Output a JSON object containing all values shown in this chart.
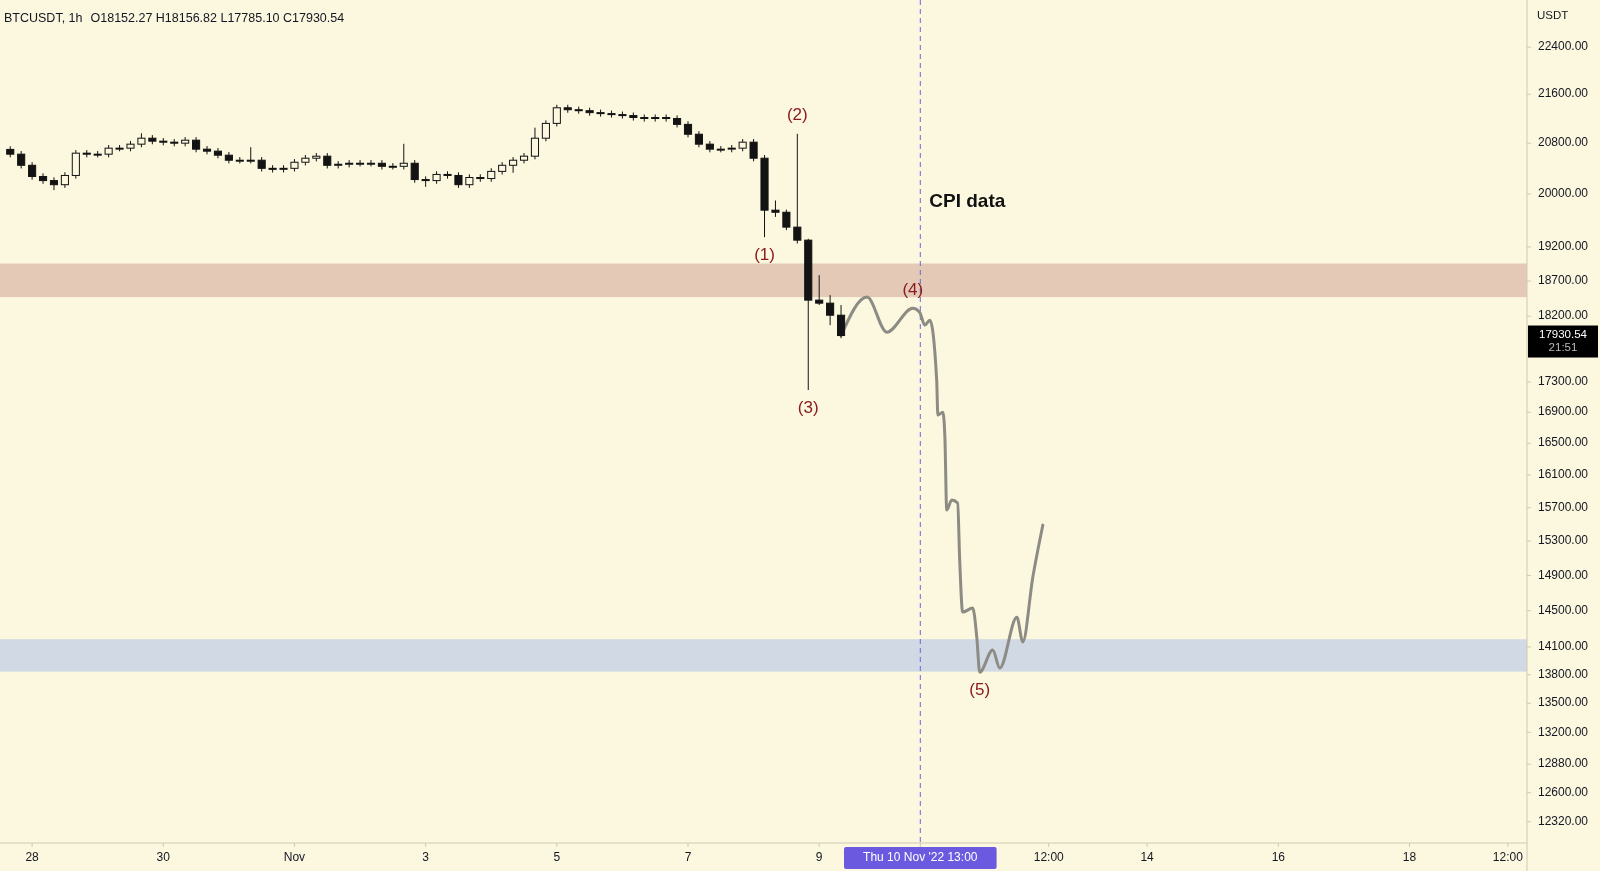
{
  "chart_data": {
    "type": "candlestick",
    "title": "BTCUSDT, 1h",
    "subtitle": "O18152.27 H18156.82 L17785.10 C17930.54",
    "ylabel": "USDT",
    "log": true,
    "grid": false,
    "xlim": [
      "2022-10-27T12:15",
      "2022-11-19T19:00"
    ],
    "ylim": [
      12120,
      23230
    ],
    "xticks": [
      {
        "value": "2022-10-28",
        "label": "28"
      },
      {
        "value": "2022-10-30",
        "label": "30"
      },
      {
        "value": "2022-11-01",
        "label": "Nov"
      },
      {
        "value": "2022-11-03",
        "label": "3"
      },
      {
        "value": "2022-11-05",
        "label": "5"
      },
      {
        "value": "2022-11-07",
        "label": "7"
      },
      {
        "value": "2022-11-09",
        "label": "9"
      },
      {
        "value": "2022-11-10T13:00",
        "label": "Thu 10 Nov '22  13:00"
      },
      {
        "value": "2022-11-12T12:00",
        "label": "12:00"
      },
      {
        "value": "2022-11-14",
        "label": "14"
      },
      {
        "value": "2022-11-16",
        "label": "16"
      },
      {
        "value": "2022-11-18",
        "label": "18"
      },
      {
        "value": "2022-11-19T12:00",
        "label": "12:00"
      }
    ],
    "yticks": [
      {
        "value": 22400,
        "label": "22400.00"
      },
      {
        "value": 21600,
        "label": "21600.00"
      },
      {
        "value": 20800,
        "label": "20800.00"
      },
      {
        "value": 20000,
        "label": "20000.00"
      },
      {
        "value": 19200,
        "label": "19200.00"
      },
      {
        "value": 18700,
        "label": "18700.00"
      },
      {
        "value": 18200,
        "label": "18200.00"
      },
      {
        "value": 17300,
        "label": "17300.00"
      },
      {
        "value": 16900,
        "label": "16900.00"
      },
      {
        "value": 16500,
        "label": "16500.00"
      },
      {
        "value": 16100,
        "label": "16100.00"
      },
      {
        "value": 15700,
        "label": "15700.00"
      },
      {
        "value": 15300,
        "label": "15300.00"
      },
      {
        "value": 14900,
        "label": "14900.00"
      },
      {
        "value": 14500,
        "label": "14500.00"
      },
      {
        "value": 14100,
        "label": "14100.00"
      },
      {
        "value": 13800,
        "label": "13800.00"
      },
      {
        "value": 13500,
        "label": "13500.00"
      },
      {
        "value": 13200,
        "label": "13200.00"
      },
      {
        "value": 12880,
        "label": "12880.00"
      },
      {
        "value": 12600,
        "label": "12600.00"
      },
      {
        "value": 12320,
        "label": "12320.00"
      }
    ],
    "color": "#131313",
    "x": [
      "2022-10-27T16:00",
      "2022-10-27T20:00",
      "2022-10-28T00:00",
      "2022-10-28T04:00",
      "2022-10-28T08:00",
      "2022-10-28T12:00",
      "2022-10-28T16:00",
      "2022-10-28T20:00",
      "2022-10-29T00:00",
      "2022-10-29T04:00",
      "2022-10-29T08:00",
      "2022-10-29T12:00",
      "2022-10-29T16:00",
      "2022-10-29T20:00",
      "2022-10-30T00:00",
      "2022-10-30T04:00",
      "2022-10-30T08:00",
      "2022-10-30T12:00",
      "2022-10-30T16:00",
      "2022-10-30T20:00",
      "2022-10-31T00:00",
      "2022-10-31T04:00",
      "2022-10-31T08:00",
      "2022-10-31T12:00",
      "2022-10-31T16:00",
      "2022-10-31T20:00",
      "2022-11-01T00:00",
      "2022-11-01T04:00",
      "2022-11-01T08:00",
      "2022-11-01T12:00",
      "2022-11-01T16:00",
      "2022-11-01T20:00",
      "2022-11-02T00:00",
      "2022-11-02T04:00",
      "2022-11-02T08:00",
      "2022-11-02T12:00",
      "2022-11-02T16:00",
      "2022-11-02T20:00",
      "2022-11-03T00:00",
      "2022-11-03T04:00",
      "2022-11-03T08:00",
      "2022-11-03T12:00",
      "2022-11-03T16:00",
      "2022-11-03T20:00",
      "2022-11-04T00:00",
      "2022-11-04T04:00",
      "2022-11-04T08:00",
      "2022-11-04T12:00",
      "2022-11-04T16:00",
      "2022-11-04T20:00",
      "2022-11-05T00:00",
      "2022-11-05T04:00",
      "2022-11-05T08:00",
      "2022-11-05T12:00",
      "2022-11-05T16:00",
      "2022-11-05T20:00",
      "2022-11-06T00:00",
      "2022-11-06T04:00",
      "2022-11-06T08:00",
      "2022-11-06T12:00",
      "2022-11-06T16:00",
      "2022-11-06T20:00",
      "2022-11-07T00:00",
      "2022-11-07T04:00",
      "2022-11-07T08:00",
      "2022-11-07T12:00",
      "2022-11-07T16:00",
      "2022-11-07T20:00",
      "2022-11-08T00:00",
      "2022-11-08T04:00",
      "2022-11-08T08:00",
      "2022-11-08T12:00",
      "2022-11-08T16:00",
      "2022-11-08T20:00",
      "2022-11-09T00:00",
      "2022-11-09T04:00",
      "2022-11-09T08:00"
    ],
    "ohlc": [
      [
        20700,
        20750,
        20574,
        20624
      ],
      [
        20624,
        20674,
        20398,
        20448
      ],
      [
        20448,
        20498,
        20222,
        20272
      ],
      [
        20272,
        20322,
        20158,
        20208
      ],
      [
        20208,
        20258,
        20060,
        20144
      ],
      [
        20144,
        20338,
        20094,
        20288
      ],
      [
        20288,
        20690,
        20238,
        20640
      ],
      [
        20640,
        20690,
        20574,
        20624
      ],
      [
        20624,
        20674,
        20574,
        20624
      ],
      [
        20624,
        20770,
        20574,
        20720
      ],
      [
        20720,
        20770,
        20670,
        20720
      ],
      [
        20720,
        20834,
        20670,
        20784
      ],
      [
        20784,
        20960,
        20734,
        20880
      ],
      [
        20880,
        20930,
        20782,
        20832
      ],
      [
        20832,
        20882,
        20766,
        20816
      ],
      [
        20816,
        20866,
        20750,
        20800
      ],
      [
        20800,
        20898,
        20750,
        20848
      ],
      [
        20848,
        20898,
        20654,
        20704
      ],
      [
        20704,
        20754,
        20622,
        20672
      ],
      [
        20672,
        20722,
        20558,
        20608
      ],
      [
        20608,
        20658,
        20478,
        20528
      ],
      [
        20528,
        20578,
        20478,
        20528
      ],
      [
        20528,
        20736,
        20478,
        20528
      ],
      [
        20528,
        20578,
        20350,
        20400
      ],
      [
        20400,
        20450,
        20334,
        20384
      ],
      [
        20384,
        20450,
        20334,
        20400
      ],
      [
        20400,
        20546,
        20350,
        20496
      ],
      [
        20496,
        20610,
        20446,
        20560
      ],
      [
        20560,
        20642,
        20510,
        20592
      ],
      [
        20592,
        20642,
        20398,
        20448
      ],
      [
        20448,
        20514,
        20398,
        20464
      ],
      [
        20464,
        20530,
        20414,
        20480
      ],
      [
        20480,
        20530,
        20430,
        20480
      ],
      [
        20480,
        20530,
        20430,
        20480
      ],
      [
        20480,
        20530,
        20382,
        20432
      ],
      [
        20432,
        20482,
        20382,
        20432
      ],
      [
        20432,
        20790,
        20382,
        20480
      ],
      [
        20480,
        20530,
        20174,
        20224
      ],
      [
        20224,
        20274,
        20110,
        20208
      ],
      [
        20208,
        20354,
        20158,
        20304
      ],
      [
        20304,
        20354,
        20238,
        20288
      ],
      [
        20288,
        20338,
        20094,
        20144
      ],
      [
        20144,
        20306,
        20094,
        20256
      ],
      [
        20256,
        20306,
        20190,
        20240
      ],
      [
        20240,
        20402,
        20190,
        20352
      ],
      [
        20352,
        20498,
        20302,
        20448
      ],
      [
        20448,
        20578,
        20330,
        20528
      ],
      [
        20528,
        20642,
        20478,
        20592
      ],
      [
        20592,
        21050,
        20542,
        20880
      ],
      [
        20880,
        21170,
        20830,
        21120
      ],
      [
        21120,
        21426,
        21070,
        21376
      ],
      [
        21376,
        21426,
        21294,
        21344
      ],
      [
        21344,
        21394,
        21278,
        21328
      ],
      [
        21328,
        21378,
        21246,
        21296
      ],
      [
        21296,
        21346,
        21230,
        21280
      ],
      [
        21280,
        21330,
        21214,
        21264
      ],
      [
        21264,
        21314,
        21198,
        21248
      ],
      [
        21248,
        21298,
        21166,
        21216
      ],
      [
        21216,
        21266,
        21150,
        21200
      ],
      [
        21200,
        21266,
        21150,
        21216
      ],
      [
        21216,
        21266,
        21150,
        21200
      ],
      [
        21200,
        21250,
        21054,
        21104
      ],
      [
        21104,
        21154,
        20894,
        20944
      ],
      [
        20944,
        20994,
        20734,
        20784
      ],
      [
        20784,
        20834,
        20654,
        20704
      ],
      [
        20704,
        20754,
        20654,
        20704
      ],
      [
        20704,
        20770,
        20654,
        20720
      ],
      [
        20720,
        20866,
        20670,
        20816
      ],
      [
        20816,
        20866,
        20510,
        20560
      ],
      [
        20560,
        20610,
        19345,
        19752
      ],
      [
        19752,
        19900,
        19650,
        19720
      ],
      [
        19720,
        19760,
        19450,
        19495
      ],
      [
        19495,
        20950,
        19250,
        19300
      ],
      [
        19300,
        19320,
        17192,
        18427
      ],
      [
        18427,
        18785,
        18357,
        18384
      ],
      [
        18384,
        18498,
        18075,
        18214
      ],
      [
        18214,
        18357,
        17893,
        17930.54
      ]
    ],
    "series": [
      {
        "type": "line",
        "color": "#8c8c84",
        "x": [
          "2022-11-09T08:00",
          "2022-11-09T17:30",
          "2022-11-10T00:45",
          "2022-11-10T10:15",
          "2022-11-10T12:45",
          "2022-11-10T14:40",
          "2022-11-10T16:30",
          "2022-11-10T19:00",
          "2022-11-10T19:25",
          "2022-11-10T21:15",
          "2022-11-10T22:00",
          "2022-11-10T22:40",
          "2022-11-11T00:30",
          "2022-11-11T02:40",
          "2022-11-11T03:25",
          "2022-11-11T04:30",
          "2022-11-11T08:10",
          "2022-11-11T09:40",
          "2022-11-11T10:45",
          "2022-11-11T15:30",
          "2022-11-11T18:05",
          "2022-11-12T00:20",
          "2022-11-12T02:30",
          "2022-11-12T06:10",
          "2022-11-12T09:50"
        ],
        "values": [
          17930.54,
          18470,
          17977,
          18312,
          18256,
          18075,
          18144,
          17324,
          16863,
          16901,
          16578,
          15671,
          15792,
          15756,
          15077,
          14484,
          14529,
          14208,
          13828,
          14067,
          13872,
          14428,
          14155,
          14880,
          15490
        ]
      }
    ],
    "bands": [
      {
        "axis": "y",
        "from": 18470,
        "to": 18955,
        "color": "#e3c9b6"
      },
      {
        "axis": "y",
        "from": 13834,
        "to": 14184,
        "color": "#d0d9e4"
      }
    ],
    "ref_lines": [
      {
        "axis": "x",
        "value": "2022-11-10T13:00",
        "label": "CPI data",
        "color": "#6a66e0",
        "line_style": "dashed"
      }
    ],
    "annotations": [
      {
        "text": "(1)",
        "x": "2022-11-08T04:00",
        "y": 19345
      },
      {
        "text": "(2)",
        "x": "2022-11-08T16:00",
        "y": 20950
      },
      {
        "text": "(3)",
        "x": "2022-11-08T20:00",
        "y": 17192
      },
      {
        "text": "(4)",
        "x": "2022-11-10T10:15",
        "y": 18312
      },
      {
        "text": "(5)",
        "x": "2022-11-11T10:45",
        "y": 13828
      },
      "17930.54",
      "21:51"
    ]
  }
}
